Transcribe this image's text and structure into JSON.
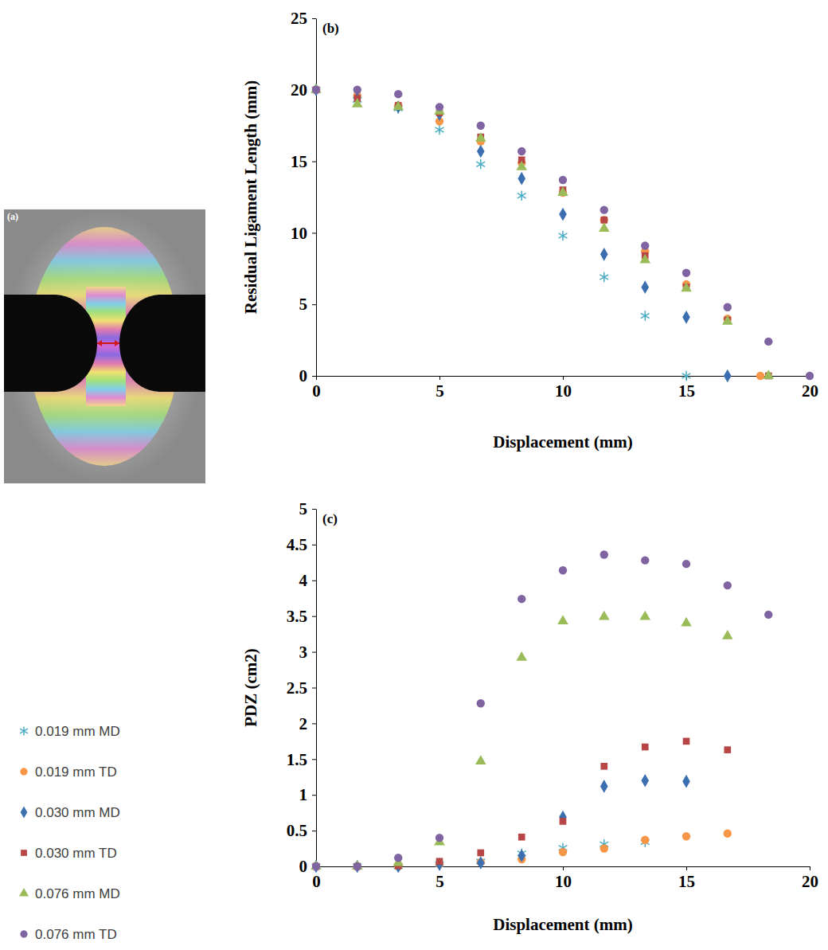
{
  "panel_a": {
    "label": "(a)"
  },
  "chart_data": [
    {
      "type": "scatter",
      "annotations": [
        "(b)"
      ],
      "x_label": "Displacement (mm)",
      "y_label": "Residual Ligament Length (mm)",
      "xlim": [
        0,
        20
      ],
      "xticks": [
        0,
        5,
        10,
        15,
        20
      ],
      "ylim": [
        0,
        25
      ],
      "yticks": [
        0,
        5,
        10,
        15,
        20,
        25
      ],
      "grid": false,
      "legend": "left",
      "series": [
        {
          "name": "0.019 mm MD",
          "color": "#4bacc6",
          "marker": "star",
          "x": [
            0,
            1.67,
            3.33,
            5,
            6.67,
            8.33,
            10,
            11.67,
            13.33,
            15
          ],
          "values": [
            20,
            19.3,
            18.7,
            17.2,
            14.8,
            12.6,
            9.8,
            6.9,
            4.2,
            0
          ]
        },
        {
          "name": "0.019 mm TD",
          "color": "#f79646",
          "marker": "circle",
          "x": [
            0,
            1.67,
            3.33,
            5,
            6.67,
            8.33,
            10,
            11.67,
            13.33,
            15,
            16.67,
            18.0
          ],
          "values": [
            20,
            19.6,
            18.9,
            17.8,
            16.4,
            14.9,
            12.8,
            10.9,
            8.7,
            6.4,
            4.0,
            0
          ]
        },
        {
          "name": "0.030 mm MD",
          "color": "#3b6fb0",
          "marker": "diamond",
          "x": [
            0,
            1.67,
            3.33,
            5,
            6.67,
            8.33,
            10,
            11.67,
            13.33,
            15,
            16.67
          ],
          "values": [
            20,
            19.4,
            18.8,
            18.3,
            15.7,
            13.8,
            11.3,
            8.5,
            6.2,
            4.1,
            0
          ]
        },
        {
          "name": "0.030 mm TD",
          "color": "#b94646",
          "marker": "square",
          "x": [
            0,
            1.67,
            3.33,
            5,
            6.67,
            8.33,
            10,
            11.67,
            13.33,
            15,
            16.67,
            18.33
          ],
          "values": [
            20,
            19.4,
            18.9,
            18.4,
            16.7,
            15.1,
            13.0,
            10.9,
            8.4,
            6.2,
            3.9,
            0
          ]
        },
        {
          "name": "0.076 mm MD",
          "color": "#9bbb59",
          "marker": "triangle",
          "x": [
            0,
            1.67,
            3.33,
            5,
            6.67,
            8.33,
            10,
            11.67,
            13.33,
            15,
            16.67,
            18.33
          ],
          "values": [
            20,
            19.0,
            18.8,
            18.5,
            16.6,
            14.6,
            12.8,
            10.3,
            8.1,
            6.1,
            3.8,
            0
          ]
        },
        {
          "name": "0.076 mm TD",
          "color": "#8064a2",
          "marker": "circle",
          "x": [
            0,
            1.67,
            3.33,
            5,
            6.67,
            8.33,
            10,
            11.67,
            13.33,
            15,
            16.67,
            18.33,
            20
          ],
          "values": [
            20,
            20.0,
            19.7,
            18.8,
            17.5,
            15.7,
            13.7,
            11.6,
            9.1,
            7.2,
            4.8,
            2.4,
            0
          ]
        }
      ]
    },
    {
      "type": "scatter",
      "annotations": [
        "(c)"
      ],
      "x_label": "Displacement (mm)",
      "y_label": "PDZ (cm2)",
      "xlim": [
        0,
        20
      ],
      "xticks": [
        0,
        5,
        10,
        15,
        20
      ],
      "ylim": [
        0,
        5
      ],
      "yticks": [
        0,
        0.5,
        1,
        1.5,
        2,
        2.5,
        3,
        3.5,
        4,
        4.5,
        5
      ],
      "grid": false,
      "series": [
        {
          "color": "#4bacc6",
          "marker": "star",
          "x": [
            0,
            1.67,
            3.33,
            5,
            6.67,
            8.33,
            10,
            11.67,
            13.33
          ],
          "values": [
            0,
            0,
            0,
            0.03,
            0.07,
            0.18,
            0.26,
            0.31,
            0.34
          ]
        },
        {
          "color": "#f79646",
          "marker": "circle",
          "x": [
            0,
            1.67,
            3.33,
            5,
            6.67,
            8.33,
            10,
            11.67,
            13.33,
            15,
            16.67
          ],
          "values": [
            0,
            0,
            0,
            0.03,
            0.06,
            0.1,
            0.2,
            0.25,
            0.37,
            0.42,
            0.46
          ]
        },
        {
          "color": "#3b6fb0",
          "marker": "diamond",
          "x": [
            0,
            1.67,
            3.33,
            5,
            6.67,
            8.33,
            10,
            11.67,
            13.33,
            15
          ],
          "values": [
            0,
            0,
            0,
            0.03,
            0.05,
            0.15,
            0.69,
            1.12,
            1.2,
            1.19
          ]
        },
        {
          "color": "#b94646",
          "marker": "square",
          "x": [
            0,
            1.67,
            3.33,
            5,
            6.67,
            8.33,
            10,
            11.67,
            13.33,
            15,
            16.67
          ],
          "values": [
            0,
            0,
            0.01,
            0.07,
            0.19,
            0.41,
            0.63,
            1.4,
            1.67,
            1.75,
            1.63
          ]
        },
        {
          "color": "#9bbb59",
          "marker": "triangle",
          "x": [
            0,
            1.67,
            3.33,
            5,
            6.67,
            8.33,
            10,
            11.67,
            13.33,
            15,
            16.67
          ],
          "values": [
            0,
            0,
            0.05,
            0.34,
            1.47,
            2.92,
            3.43,
            3.49,
            3.49,
            3.4,
            3.22
          ]
        },
        {
          "color": "#8064a2",
          "marker": "circle",
          "x": [
            0,
            1.67,
            3.33,
            5,
            6.67,
            8.33,
            10,
            11.67,
            13.33,
            15,
            16.67,
            18.33
          ],
          "values": [
            0,
            0,
            0.12,
            0.4,
            2.28,
            3.74,
            4.14,
            4.36,
            4.28,
            4.23,
            3.93,
            3.52
          ]
        }
      ]
    }
  ]
}
